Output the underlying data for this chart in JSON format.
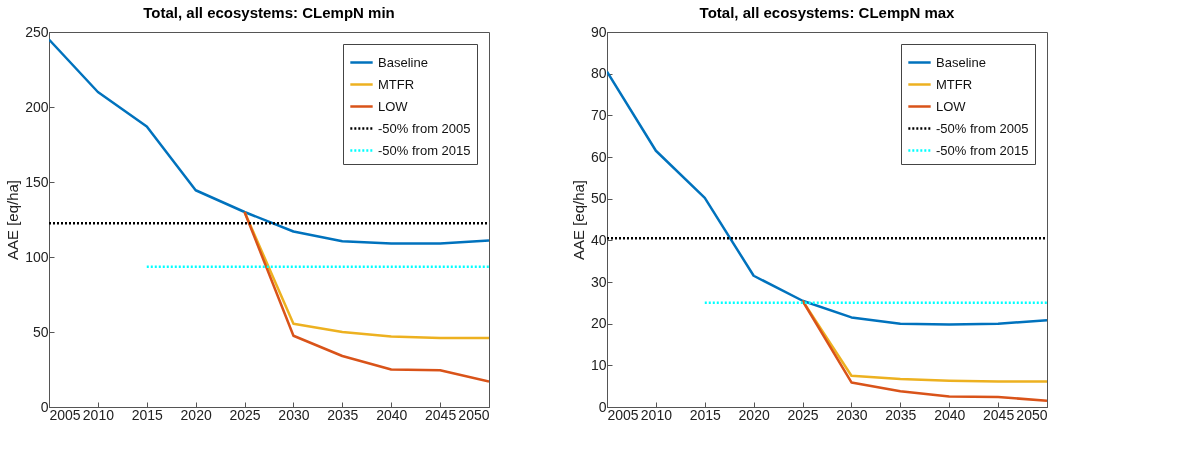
{
  "chart_data": [
    {
      "type": "line",
      "title": "Total, all ecosystems: CLempN min",
      "ylabel": "AAE [eq/ha]",
      "x": [
        2005,
        2010,
        2015,
        2020,
        2025,
        2030,
        2035,
        2040,
        2045,
        2050
      ],
      "xlim": [
        2005,
        2050
      ],
      "xticks": [
        2005,
        2010,
        2015,
        2020,
        2025,
        2030,
        2035,
        2040,
        2045,
        2050
      ],
      "ylim": [
        0,
        250
      ],
      "yticks": [
        0,
        50,
        100,
        150,
        200,
        250
      ],
      "legend": "top right",
      "series": [
        {
          "name": "Baseline",
          "color": "#0072bd",
          "values": [
            245,
            210,
            187,
            144.5,
            130,
            117,
            110.5,
            109,
            109,
            111
          ]
        },
        {
          "name": "MTFR",
          "color": "#edb120",
          "x": [
            2025,
            2030,
            2035,
            2040,
            2045,
            2050
          ],
          "values": [
            130,
            55.5,
            50,
            47,
            46,
            46
          ]
        },
        {
          "name": "LOW",
          "color": "#d95319",
          "x": [
            2025,
            2030,
            2035,
            2040,
            2045,
            2050
          ],
          "values": [
            130,
            47.5,
            34,
            25,
            24.5,
            17
          ]
        },
        {
          "name": "-50% from 2005",
          "color": "#000000",
          "line_style": "dotted",
          "x": [
            2005,
            2050
          ],
          "values": [
            122.5,
            122.5
          ]
        },
        {
          "name": "-50% from 2015",
          "color": "#00ffff",
          "line_style": "dotted",
          "x": [
            2015,
            2050
          ],
          "values": [
            93.5,
            93.5
          ]
        }
      ]
    },
    {
      "type": "line",
      "title": "Total, all ecosystems: CLempN max",
      "ylabel": "AAE [eq/ha]",
      "x": [
        2005,
        2010,
        2015,
        2020,
        2025,
        2030,
        2035,
        2040,
        2045,
        2050
      ],
      "xlim": [
        2005,
        2050
      ],
      "xticks": [
        2005,
        2010,
        2015,
        2020,
        2025,
        2030,
        2035,
        2040,
        2045,
        2050
      ],
      "ylim": [
        0,
        90
      ],
      "yticks": [
        0,
        10,
        20,
        30,
        40,
        50,
        60,
        70,
        80,
        90
      ],
      "legend": "top right",
      "series": [
        {
          "name": "Baseline",
          "color": "#0072bd",
          "values": [
            80.5,
            61.5,
            50.2,
            31.5,
            25.5,
            21.5,
            20,
            19.8,
            20,
            20.8
          ]
        },
        {
          "name": "MTFR",
          "color": "#edb120",
          "x": [
            2025,
            2030,
            2035,
            2040,
            2045,
            2050
          ],
          "values": [
            25.5,
            7.5,
            6.7,
            6.3,
            6.1,
            6.1
          ]
        },
        {
          "name": "LOW",
          "color": "#d95319",
          "x": [
            2025,
            2030,
            2035,
            2040,
            2045,
            2050
          ],
          "values": [
            25.5,
            5.9,
            3.8,
            2.5,
            2.4,
            1.5
          ]
        },
        {
          "name": "-50% from 2005",
          "color": "#000000",
          "line_style": "dotted",
          "x": [
            2005,
            2050
          ],
          "values": [
            40.5,
            40.5
          ]
        },
        {
          "name": "-50% from 2015",
          "color": "#00ffff",
          "line_style": "dotted",
          "x": [
            2015,
            2050
          ],
          "values": [
            25,
            25
          ]
        }
      ]
    }
  ]
}
